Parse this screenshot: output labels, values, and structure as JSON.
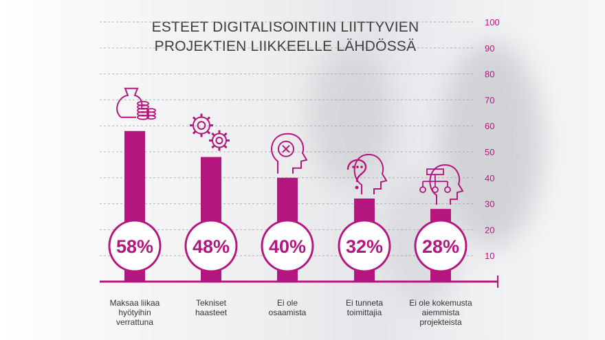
{
  "chart_data": {
    "type": "bar",
    "title_lines": [
      "ESTEET DIGITALISOINTIIN LIITTYVIEN",
      "PROJEKTIEN LIIKKEELLE LÄHDÖSSÄ"
    ],
    "categories": [
      [
        "Maksaa liikaa",
        "hyötyihin",
        "verrattuna"
      ],
      [
        "Tekniset",
        "haasteet"
      ],
      [
        "Ei ole",
        "osaamista"
      ],
      [
        "Ei tunneta",
        "toimittajia"
      ],
      [
        "Ei ole kokemusta",
        "aiemmista",
        "projekteista"
      ]
    ],
    "values": [
      58,
      48,
      40,
      32,
      28
    ],
    "value_labels": [
      "58%",
      "48%",
      "40%",
      "32%",
      "28%"
    ],
    "icons": [
      "money-bag-coins-icon",
      "gears-icon",
      "head-x-icon",
      "head-question-icon",
      "head-network-icon"
    ],
    "ylim": [
      0,
      100
    ],
    "yticks": [
      10,
      20,
      30,
      40,
      50,
      60,
      70,
      80,
      90,
      100
    ],
    "grid": true,
    "colors": {
      "accent": "#b5157f",
      "axis": "#b5157f",
      "title": "#3b3b3b",
      "tick": "#b5157f"
    }
  }
}
